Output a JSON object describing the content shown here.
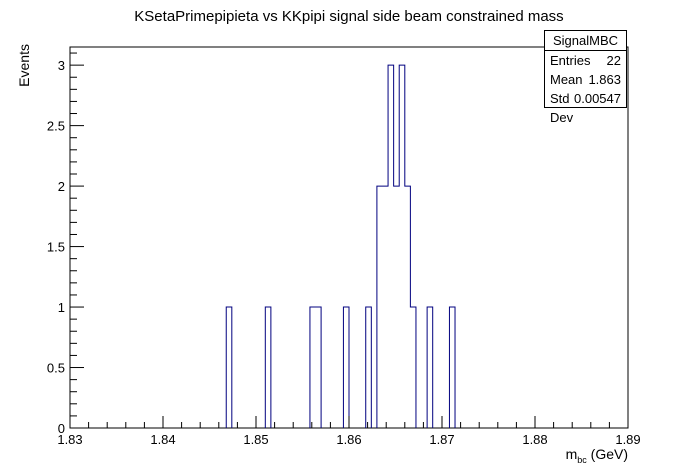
{
  "chart_data": {
    "type": "histogram",
    "title": "KSetaPrimepipieta vs KKpipi signal side beam constrained mass",
    "xlabel": "m_{bc} (GeV)",
    "xlabel_main": "m",
    "xlabel_sub": "bc",
    "xlabel_unit": " (GeV)",
    "ylabel": "Events",
    "xlim": [
      1.83,
      1.89
    ],
    "ylim": [
      0,
      3.15
    ],
    "bin_width": 0.0006,
    "x_ticks": [
      "1.83",
      "1.84",
      "1.85",
      "1.86",
      "1.87",
      "1.88",
      "1.89"
    ],
    "y_ticks": [
      "0",
      "0.5",
      "1",
      "1.5",
      "2",
      "2.5",
      "3"
    ],
    "bins": [
      {
        "x0": 1.8468,
        "x1": 1.8474,
        "count": 1
      },
      {
        "x0": 1.851,
        "x1": 1.8516,
        "count": 1
      },
      {
        "x0": 1.8558,
        "x1": 1.857,
        "count": 1
      },
      {
        "x0": 1.8594,
        "x1": 1.86,
        "count": 1
      },
      {
        "x0": 1.8618,
        "x1": 1.8624,
        "count": 1
      },
      {
        "x0": 1.863,
        "x1": 1.8642,
        "count": 2
      },
      {
        "x0": 1.8642,
        "x1": 1.8648,
        "count": 3
      },
      {
        "x0": 1.8648,
        "x1": 1.8654,
        "count": 2
      },
      {
        "x0": 1.8654,
        "x1": 1.866,
        "count": 3
      },
      {
        "x0": 1.866,
        "x1": 1.8666,
        "count": 2
      },
      {
        "x0": 1.8666,
        "x1": 1.8672,
        "count": 1
      },
      {
        "x0": 1.8684,
        "x1": 1.869,
        "count": 1
      },
      {
        "x0": 1.8708,
        "x1": 1.8714,
        "count": 1
      }
    ],
    "line_color": "#00007f",
    "stats": {
      "title": "SignalMBC",
      "entries_label": "Entries",
      "entries_value": "22",
      "mean_label": "Mean",
      "mean_value": "1.863",
      "stddev_label": "Std Dev",
      "stddev_value": "0.00547"
    }
  }
}
